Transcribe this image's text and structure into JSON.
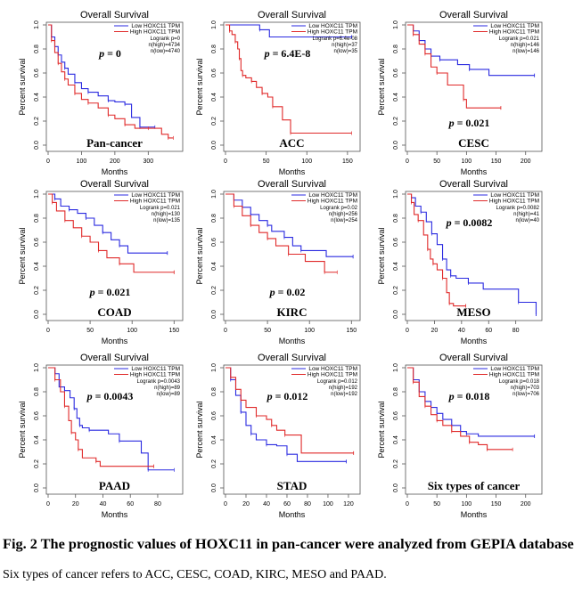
{
  "figure": {
    "caption": "Fig. 2 The prognostic values of HOXC11 in pan-cancer were analyzed from GEPIA database",
    "note": "Six types of cancer refers to ACC, CESC, COAD, KIRC, MESO and PAAD."
  },
  "colors": {
    "low": "#2a2ae0",
    "high": "#e02a2a",
    "axis": "#555555"
  },
  "chart_data": [
    {
      "type": "line",
      "title": "Overall Survival",
      "cancer": "Pan-cancer",
      "p_label": "= 0",
      "xlabel": "Months",
      "ylabel": "Percent survival",
      "xlim": [
        0,
        390
      ],
      "ylim": [
        0,
        1
      ],
      "xticks": [
        0,
        100,
        200,
        300
      ],
      "yticks": [
        0.0,
        0.2,
        0.4,
        0.6,
        0.8,
        1.0
      ],
      "legend": [
        "Low HOXC11 TPM",
        "High HOXC11 TPM"
      ],
      "stats": [
        "Logrank p=0",
        "n(high)=4734",
        "n(low)=4740"
      ],
      "p_pos": "upper-middle",
      "series": [
        {
          "name": "Low HOXC11 TPM",
          "x": [
            0,
            10,
            20,
            30,
            40,
            50,
            60,
            80,
            100,
            120,
            150,
            180,
            200,
            230,
            250,
            275,
            320
          ],
          "y": [
            1.0,
            0.9,
            0.82,
            0.75,
            0.69,
            0.64,
            0.59,
            0.52,
            0.47,
            0.44,
            0.41,
            0.37,
            0.36,
            0.34,
            0.23,
            0.15,
            0.15
          ]
        },
        {
          "name": "High HOXC11 TPM",
          "x": [
            0,
            10,
            20,
            30,
            40,
            50,
            60,
            80,
            100,
            120,
            150,
            180,
            200,
            230,
            260,
            300,
            340,
            360,
            375
          ],
          "y": [
            1.0,
            0.87,
            0.77,
            0.68,
            0.61,
            0.55,
            0.5,
            0.43,
            0.38,
            0.35,
            0.31,
            0.25,
            0.22,
            0.17,
            0.14,
            0.14,
            0.09,
            0.06,
            0.06
          ]
        }
      ]
    },
    {
      "type": "line",
      "title": "Overall Survival",
      "cancer": "ACC",
      "p_label": "= 6.4E-8",
      "xlabel": "Months",
      "ylabel": "Percent survival",
      "xlim": [
        0,
        160
      ],
      "ylim": [
        0,
        1
      ],
      "xticks": [
        0,
        50,
        100,
        150
      ],
      "yticks": [
        0.0,
        0.2,
        0.4,
        0.6,
        0.8,
        1.0
      ],
      "legend": [
        "Low HOXC11 TPM",
        "High HOXC11 TPM"
      ],
      "stats": [
        "Logrank p=6.4e-08",
        "n(high)=37",
        "n(low)=35"
      ],
      "p_pos": "upper-middle",
      "series": [
        {
          "name": "Low HOXC11 TPM",
          "x": [
            0,
            42,
            54,
            155
          ],
          "y": [
            1.0,
            0.96,
            0.9,
            0.9
          ]
        },
        {
          "name": "High HOXC11 TPM",
          "x": [
            0,
            5,
            8,
            12,
            15,
            17,
            19,
            21,
            25,
            32,
            38,
            45,
            52,
            58,
            70,
            80,
            155
          ],
          "y": [
            1.0,
            0.95,
            0.92,
            0.86,
            0.8,
            0.72,
            0.62,
            0.58,
            0.56,
            0.53,
            0.48,
            0.43,
            0.4,
            0.32,
            0.21,
            0.1,
            0.1
          ]
        }
      ]
    },
    {
      "type": "line",
      "title": "Overall Survival",
      "cancer": "CESC",
      "p_label": "= 0.021",
      "xlabel": "Months",
      "ylabel": "Percent survival",
      "xlim": [
        0,
        220
      ],
      "ylim": [
        0,
        1
      ],
      "xticks": [
        0,
        50,
        100,
        150,
        200
      ],
      "yticks": [
        0.0,
        0.2,
        0.4,
        0.6,
        0.8,
        1.0
      ],
      "legend": [
        "Low HOXC11 TPM",
        "High HOXC11 TPM"
      ],
      "stats": [
        "Logrank p=0.021",
        "n(high)=146",
        "n(low)=146"
      ],
      "p_pos": "lower-middle",
      "series": [
        {
          "name": "Low HOXC11 TPM",
          "x": [
            0,
            10,
            20,
            30,
            40,
            55,
            85,
            105,
            138,
            215
          ],
          "y": [
            1.0,
            0.95,
            0.87,
            0.8,
            0.74,
            0.71,
            0.67,
            0.63,
            0.58,
            0.58
          ]
        },
        {
          "name": "High HOXC11 TPM",
          "x": [
            0,
            10,
            20,
            30,
            40,
            50,
            68,
            95,
            100,
            158
          ],
          "y": [
            1.0,
            0.92,
            0.84,
            0.76,
            0.65,
            0.6,
            0.5,
            0.38,
            0.31,
            0.31
          ]
        }
      ]
    },
    {
      "type": "line",
      "title": "Overall Survival",
      "cancer": "COAD",
      "p_label": "= 0.021",
      "xlabel": "Months",
      "ylabel": "Percent survival",
      "xlim": [
        0,
        155
      ],
      "ylim": [
        0,
        1
      ],
      "xticks": [
        0,
        50,
        100,
        150
      ],
      "yticks": [
        0.0,
        0.2,
        0.4,
        0.6,
        0.8,
        1.0
      ],
      "legend": [
        "Low HOXC11 TPM",
        "High HOXC11 TPM"
      ],
      "stats": [
        "Logrank p=0.021",
        "n(high)=130",
        "n(low)=135"
      ],
      "p_pos": "lower-middle",
      "series": [
        {
          "name": "Low HOXC11 TPM",
          "x": [
            0,
            8,
            15,
            25,
            35,
            45,
            55,
            65,
            75,
            85,
            95,
            142
          ],
          "y": [
            1.0,
            0.96,
            0.9,
            0.87,
            0.84,
            0.8,
            0.74,
            0.68,
            0.62,
            0.57,
            0.51,
            0.51
          ]
        },
        {
          "name": "High HOXC11 TPM",
          "x": [
            0,
            5,
            10,
            20,
            30,
            40,
            50,
            60,
            70,
            85,
            102,
            150
          ],
          "y": [
            1.0,
            0.93,
            0.86,
            0.78,
            0.72,
            0.65,
            0.6,
            0.53,
            0.47,
            0.42,
            0.35,
            0.35
          ]
        }
      ]
    },
    {
      "type": "line",
      "title": "Overall Survival",
      "cancer": "KIRC",
      "p_label": "= 0.02",
      "xlabel": "Months",
      "ylabel": "Percent survival",
      "xlim": [
        0,
        155
      ],
      "ylim": [
        0,
        1
      ],
      "xticks": [
        0,
        50,
        100,
        150
      ],
      "yticks": [
        0.0,
        0.2,
        0.4,
        0.6,
        0.8,
        1.0
      ],
      "legend": [
        "Low HOXC11 TPM",
        "High HOXC11 TPM"
      ],
      "stats": [
        "Logrank p=0.02",
        "n(high)=256",
        "n(low)=254"
      ],
      "p_pos": "lower-middle",
      "series": [
        {
          "name": "Low HOXC11 TPM",
          "x": [
            0,
            10,
            20,
            30,
            40,
            50,
            55,
            70,
            80,
            90,
            120,
            152
          ],
          "y": [
            1.0,
            0.95,
            0.89,
            0.83,
            0.78,
            0.74,
            0.69,
            0.64,
            0.57,
            0.53,
            0.48,
            0.48
          ]
        },
        {
          "name": "High HOXC11 TPM",
          "x": [
            0,
            10,
            20,
            30,
            40,
            50,
            60,
            75,
            95,
            118,
            133
          ],
          "y": [
            1.0,
            0.9,
            0.82,
            0.74,
            0.68,
            0.63,
            0.57,
            0.5,
            0.44,
            0.35,
            0.35
          ]
        }
      ]
    },
    {
      "type": "line",
      "title": "Overall Survival",
      "cancer": "MESO",
      "p_label": "= 0.0082",
      "xlabel": "Months",
      "ylabel": "Percent survival",
      "xlim": [
        0,
        96
      ],
      "ylim": [
        0,
        1
      ],
      "xticks": [
        0,
        20,
        40,
        60,
        80
      ],
      "yticks": [
        0.0,
        0.2,
        0.4,
        0.6,
        0.8,
        1.0
      ],
      "legend": [
        "Low HOXC11 TPM",
        "High HOXC11 TPM"
      ],
      "stats": [
        "Logrank p=0.0082",
        "n(high)=41",
        "n(low)=40"
      ],
      "p_pos": "upper-middle",
      "series": [
        {
          "name": "Low HOXC11 TPM",
          "x": [
            0,
            3,
            6,
            10,
            14,
            18,
            22,
            26,
            29,
            32,
            36,
            45,
            56,
            82,
            94,
            95
          ],
          "y": [
            1.0,
            0.97,
            0.9,
            0.85,
            0.77,
            0.67,
            0.58,
            0.46,
            0.37,
            0.32,
            0.3,
            0.26,
            0.21,
            0.1,
            0.1,
            0.0
          ]
        },
        {
          "name": "High HOXC11 TPM",
          "x": [
            0,
            3,
            5,
            8,
            12,
            15,
            17,
            19,
            22,
            26,
            29,
            31,
            34,
            43
          ],
          "y": [
            1.0,
            0.93,
            0.83,
            0.78,
            0.66,
            0.54,
            0.46,
            0.42,
            0.37,
            0.3,
            0.18,
            0.09,
            0.07,
            0.07
          ]
        }
      ]
    },
    {
      "type": "line",
      "title": "Overall Survival",
      "cancer": "PAAD",
      "p_label": "= 0.0043",
      "xlabel": "Months",
      "ylabel": "Percent survival",
      "xlim": [
        0,
        95
      ],
      "ylim": [
        0,
        1
      ],
      "xticks": [
        0,
        20,
        40,
        60,
        80
      ],
      "yticks": [
        0.0,
        0.2,
        0.4,
        0.6,
        0.8,
        1.0
      ],
      "legend": [
        "Low HOXC11 TPM",
        "High HOXC11 TPM"
      ],
      "stats": [
        "Logrank p=0.0043",
        "n(high)=89",
        "n(low)=89"
      ],
      "p_pos": "upper-middle",
      "series": [
        {
          "name": "Low HOXC11 TPM",
          "x": [
            0,
            5,
            8,
            12,
            16,
            19,
            21,
            23,
            25,
            30,
            44,
            52,
            68,
            73,
            92
          ],
          "y": [
            1.0,
            0.95,
            0.84,
            0.81,
            0.75,
            0.66,
            0.58,
            0.52,
            0.5,
            0.48,
            0.45,
            0.39,
            0.29,
            0.15,
            0.15
          ]
        },
        {
          "name": "High HOXC11 TPM",
          "x": [
            0,
            5,
            9,
            12,
            15,
            17,
            20,
            22,
            25,
            35,
            38,
            77
          ],
          "y": [
            1.0,
            0.9,
            0.8,
            0.68,
            0.56,
            0.46,
            0.4,
            0.32,
            0.25,
            0.22,
            0.18,
            0.18
          ]
        }
      ]
    },
    {
      "type": "line",
      "title": "Overall Survival",
      "cancer": "STAD",
      "p_label": "= 0.012",
      "xlabel": "Months",
      "ylabel": "Percent survival",
      "xlim": [
        0,
        127
      ],
      "ylim": [
        0,
        1
      ],
      "xticks": [
        0,
        20,
        40,
        60,
        80,
        100,
        120
      ],
      "yticks": [
        0.0,
        0.2,
        0.4,
        0.6,
        0.8,
        1.0
      ],
      "legend": [
        "Low HOXC11 TPM",
        "High HOXC11 TPM"
      ],
      "stats": [
        "Logrank p=0.012",
        "n(high)=192",
        "n(low)=192"
      ],
      "p_pos": "upper-middle",
      "series": [
        {
          "name": "Low HOXC11 TPM",
          "x": [
            0,
            5,
            10,
            15,
            20,
            25,
            30,
            40,
            50,
            60,
            70,
            118
          ],
          "y": [
            1.0,
            0.9,
            0.77,
            0.63,
            0.52,
            0.45,
            0.4,
            0.36,
            0.35,
            0.28,
            0.22,
            0.22
          ]
        },
        {
          "name": "High HOXC11 TPM",
          "x": [
            0,
            5,
            10,
            15,
            20,
            30,
            40,
            45,
            50,
            58,
            74,
            125
          ],
          "y": [
            1.0,
            0.92,
            0.82,
            0.73,
            0.67,
            0.6,
            0.57,
            0.52,
            0.48,
            0.44,
            0.29,
            0.29
          ]
        }
      ]
    },
    {
      "type": "line",
      "title": "Overall Survival",
      "cancer": "Six types of cancer",
      "p_label": "= 0.018",
      "xlabel": "Months",
      "ylabel": "Percent survival",
      "xlim": [
        0,
        220
      ],
      "ylim": [
        0,
        1
      ],
      "xticks": [
        0,
        50,
        100,
        150,
        200
      ],
      "yticks": [
        0.0,
        0.2,
        0.4,
        0.6,
        0.8,
        1.0
      ],
      "legend": [
        "Low HOXC11 TPM",
        "High HOXC11 TPM"
      ],
      "stats": [
        "Logrank p=0.018",
        "n(high)=703",
        "n(low)=706"
      ],
      "p_pos": "upper-middle",
      "series": [
        {
          "name": "Low HOXC11 TPM",
          "x": [
            0,
            10,
            20,
            30,
            40,
            50,
            60,
            75,
            90,
            100,
            120,
            215
          ],
          "y": [
            1.0,
            0.9,
            0.8,
            0.72,
            0.67,
            0.62,
            0.57,
            0.52,
            0.47,
            0.45,
            0.43,
            0.43
          ]
        },
        {
          "name": "High HOXC11 TPM",
          "x": [
            0,
            10,
            20,
            30,
            40,
            50,
            60,
            75,
            90,
            105,
            120,
            135,
            178
          ],
          "y": [
            1.0,
            0.88,
            0.76,
            0.68,
            0.61,
            0.56,
            0.52,
            0.47,
            0.43,
            0.38,
            0.36,
            0.32,
            0.32
          ]
        }
      ]
    }
  ]
}
